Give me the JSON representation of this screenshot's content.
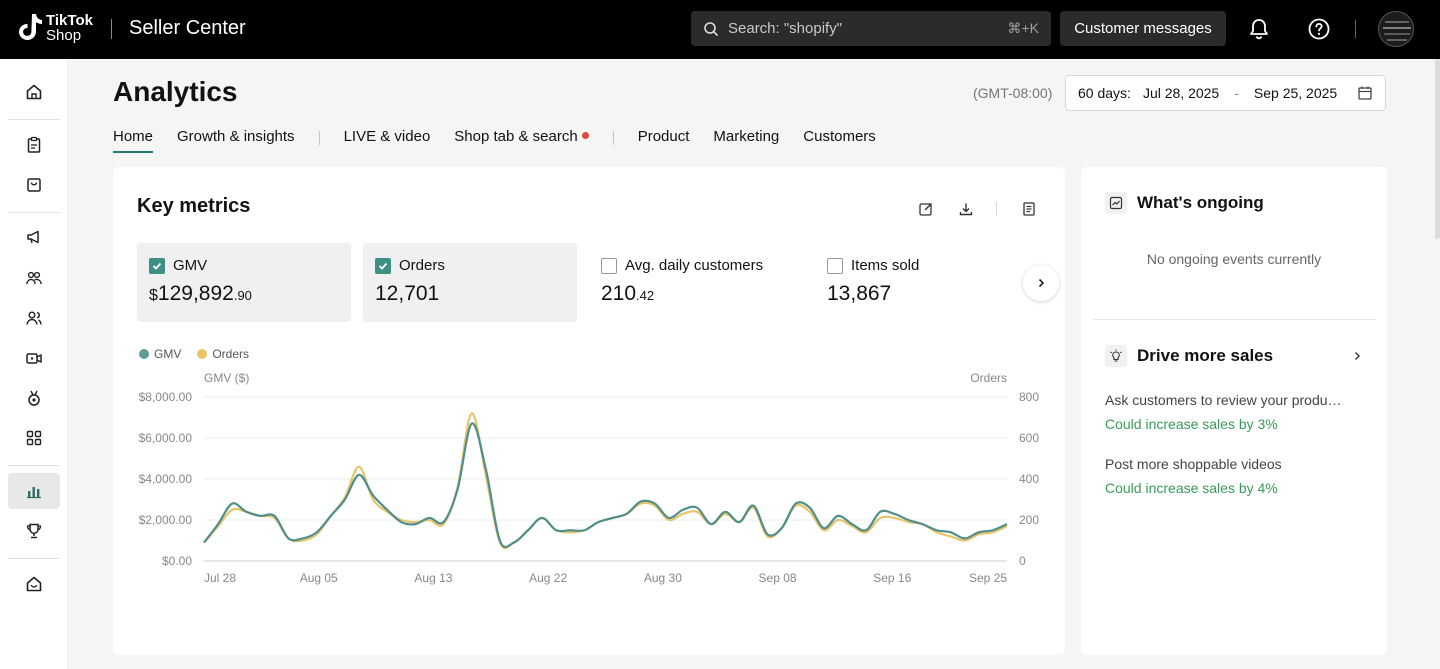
{
  "topbar": {
    "logo_line1": "TikTok",
    "logo_line2": "Shop",
    "app_title": "Seller Center",
    "search_placeholder": "Search: \"shopify\"",
    "search_shortcut": "⌘+K",
    "customer_messages": "Customer messages"
  },
  "page": {
    "title": "Analytics",
    "timezone": "(GMT-08:00)",
    "date_range_label": "60 days:",
    "date_start": "Jul 28, 2025",
    "date_sep": "-",
    "date_end": "Sep 25, 2025"
  },
  "tabs": [
    "Home",
    "Growth & insights",
    "LIVE & video",
    "Shop tab & search",
    "Product",
    "Marketing",
    "Customers"
  ],
  "key_metrics": {
    "title": "Key metrics",
    "metrics": [
      {
        "label": "GMV",
        "currency": "$",
        "value": "129,892",
        "decimal": ".90",
        "checked": true
      },
      {
        "label": "Orders",
        "value": "12,701",
        "checked": true
      },
      {
        "label": "Avg. daily customers",
        "value": "210",
        "decimal": ".42",
        "checked": false
      },
      {
        "label": "Items sold",
        "value": "13,867",
        "checked": false
      }
    ]
  },
  "chart_data": {
    "type": "line",
    "left_axis_title": "GMV ($)",
    "right_axis_title": "Orders",
    "left_ticks": [
      "$0.00",
      "$2,000.00",
      "$4,000.00",
      "$6,000.00",
      "$8,000.00"
    ],
    "right_ticks": [
      "0",
      "200",
      "400",
      "600",
      "800"
    ],
    "ylim_left": [
      0,
      8000
    ],
    "ylim_right": [
      0,
      800
    ],
    "x_labels": [
      "Jul 28",
      "Aug 05",
      "Aug 13",
      "Aug 22",
      "Aug 30",
      "Sep 08",
      "Sep 16",
      "Sep 25"
    ],
    "series": [
      {
        "name": "GMV",
        "color": "#4f8f8a",
        "axis": "left",
        "values": [
          900,
          1800,
          2800,
          2400,
          2200,
          2200,
          1100,
          1100,
          1400,
          2200,
          3000,
          4200,
          3200,
          2500,
          1900,
          1800,
          2100,
          1900,
          3500,
          6700,
          4500,
          1000,
          900,
          1500,
          2100,
          1500,
          1500,
          1500,
          1900,
          2100,
          2300,
          2900,
          2800,
          2100,
          2500,
          2600,
          1800,
          2400,
          1900,
          2700,
          1300,
          1600,
          2800,
          2600,
          1600,
          2200,
          1800,
          1500,
          2400,
          2300,
          2000,
          1800,
          1500,
          1400,
          1100,
          1400,
          1500,
          1800
        ]
      },
      {
        "name": "Orders",
        "color": "#e9c46a",
        "axis": "right",
        "values": [
          90,
          170,
          250,
          240,
          220,
          210,
          110,
          100,
          130,
          220,
          310,
          460,
          300,
          240,
          200,
          190,
          200,
          180,
          360,
          720,
          420,
          90,
          90,
          150,
          210,
          150,
          140,
          150,
          190,
          210,
          230,
          280,
          270,
          200,
          230,
          240,
          180,
          230,
          190,
          260,
          120,
          160,
          270,
          240,
          150,
          200,
          170,
          140,
          210,
          210,
          190,
          180,
          140,
          120,
          100,
          130,
          140,
          170
        ]
      }
    ],
    "legend": [
      "GMV",
      "Orders"
    ]
  },
  "right_panel": {
    "ongoing_title": "What's ongoing",
    "ongoing_empty": "No ongoing events currently",
    "drive_title": "Drive more sales",
    "tips": [
      {
        "title": "Ask customers to review your products",
        "sub": "Could increase sales by 3%"
      },
      {
        "title": "Post more shoppable videos",
        "sub": "Could increase sales by 4%"
      }
    ]
  }
}
